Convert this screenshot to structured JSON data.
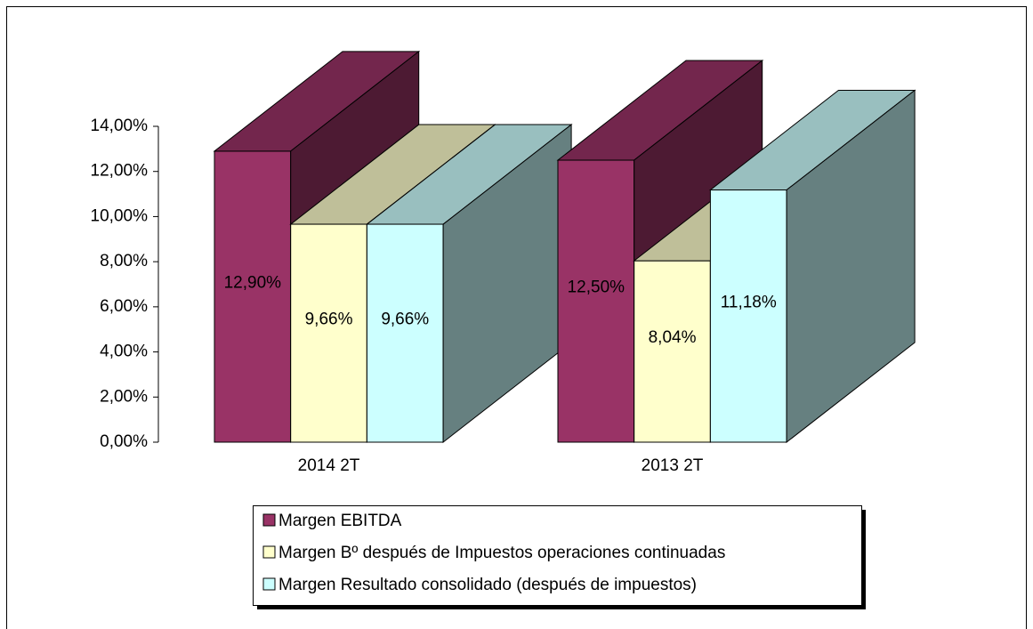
{
  "chart_data": {
    "type": "bar3d",
    "categories": [
      "2014 2T",
      "2013 2T"
    ],
    "series": [
      {
        "name": "Margen EBITDA",
        "color": "#993366",
        "values": [
          12.9,
          12.5
        ],
        "value_labels": [
          "12,90%",
          "12,50%"
        ]
      },
      {
        "name": "Margen Bº después de Impuestos operaciones continuadas",
        "color": "#ffffcc",
        "values": [
          9.66,
          8.04
        ],
        "value_labels": [
          "9,66%",
          "8,04%"
        ]
      },
      {
        "name": "Margen Resultado consolidado (después de impuestos)",
        "color": "#ccffff",
        "values": [
          9.66,
          11.18
        ],
        "value_labels": [
          "9,66%",
          "11,18%"
        ]
      }
    ],
    "ylim": [
      0,
      14
    ],
    "yticks": [
      {
        "value": 0,
        "label": "0,00%"
      },
      {
        "value": 2,
        "label": "2,00%"
      },
      {
        "value": 4,
        "label": "4,00%"
      },
      {
        "value": 6,
        "label": "6,00%"
      },
      {
        "value": 8,
        "label": "8,00%"
      },
      {
        "value": 10,
        "label": "10,00%"
      },
      {
        "value": 12,
        "label": "12,00%"
      },
      {
        "value": 14,
        "label": "14,00%"
      }
    ],
    "legend": "bottom"
  }
}
